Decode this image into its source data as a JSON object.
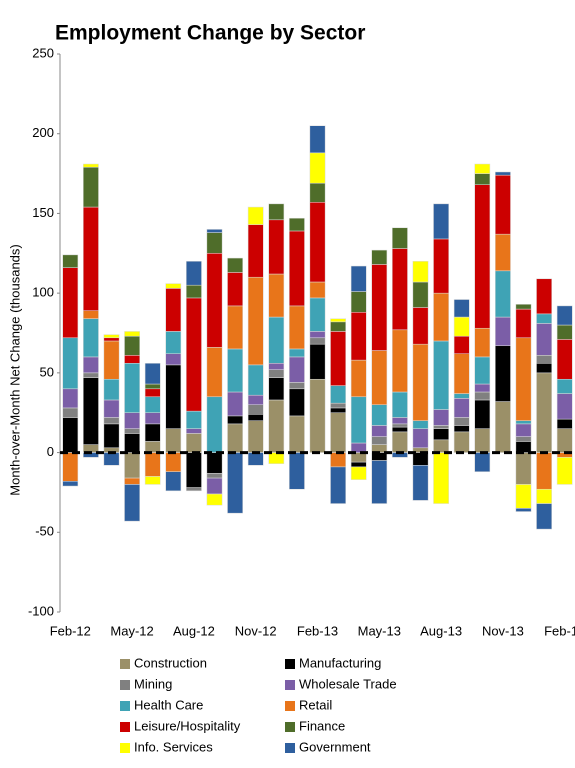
{
  "chart_data": {
    "type": "stacked_bar",
    "title": "Employment Change by Sector",
    "ylabel": "Month-over-Month Net Change (thousands)",
    "categories": [
      "Feb-12",
      null,
      null,
      "May-12",
      null,
      null,
      "Aug-12",
      null,
      null,
      "Nov-12",
      null,
      null,
      "Feb-13",
      null,
      null,
      "May-13",
      null,
      null,
      "Aug-13",
      null,
      null,
      "Nov-13",
      null,
      null,
      "Feb-14"
    ],
    "ylim": [
      -100,
      250
    ],
    "yticks": [
      250,
      200,
      150,
      100,
      50,
      0,
      -50,
      -100
    ],
    "series": [
      {
        "name": "Construction",
        "color": "#9b9068",
        "values": [
          0,
          5,
          3,
          -16,
          7,
          15,
          12,
          0,
          18,
          20,
          33,
          23,
          46,
          25,
          -6,
          5,
          13,
          3,
          8,
          13,
          15,
          32,
          -20,
          50,
          15
        ]
      },
      {
        "name": "Manufacturing",
        "color": "#000000",
        "values": [
          22,
          42,
          15,
          12,
          11,
          40,
          -22,
          -13,
          5,
          4,
          14,
          17,
          22,
          3,
          -3,
          -5,
          3,
          -8,
          7,
          4,
          18,
          35,
          7,
          6,
          6
        ]
      },
      {
        "name": "Mining",
        "color": "#808080",
        "values": [
          6,
          3,
          4,
          3,
          0,
          0,
          -2,
          -3,
          0,
          6,
          5,
          4,
          4,
          3,
          0,
          5,
          2,
          0,
          2,
          5,
          5,
          0,
          3,
          5,
          0
        ]
      },
      {
        "name": "Wholesale Trade",
        "color": "#7b5ea7",
        "values": [
          12,
          10,
          11,
          10,
          7,
          7,
          3,
          -10,
          15,
          6,
          4,
          16,
          4,
          0,
          6,
          7,
          4,
          12,
          10,
          12,
          5,
          18,
          8,
          20,
          16
        ]
      },
      {
        "name": "Health Care",
        "color": "#3fa3b5",
        "values": [
          32,
          24,
          13,
          31,
          10,
          14,
          11,
          35,
          27,
          19,
          29,
          5,
          21,
          11,
          29,
          13,
          16,
          5,
          43,
          3,
          17,
          29,
          2,
          6,
          9
        ]
      },
      {
        "name": "Retail",
        "color": "#e8751a",
        "values": [
          -18,
          5,
          24,
          -4,
          -15,
          -12,
          0,
          31,
          27,
          55,
          27,
          27,
          10,
          -9,
          23,
          34,
          39,
          48,
          30,
          25,
          18,
          23,
          52,
          -23,
          -3
        ]
      },
      {
        "name": "Leisure/Hospitality",
        "color": "#cc0000",
        "values": [
          44,
          65,
          2,
          5,
          5,
          27,
          71,
          59,
          21,
          33,
          34,
          47,
          50,
          34,
          30,
          54,
          51,
          23,
          34,
          11,
          90,
          37,
          18,
          22,
          25
        ]
      },
      {
        "name": "Finance",
        "color": "#4f6d2a",
        "values": [
          8,
          25,
          0,
          12,
          3,
          0,
          8,
          13,
          9,
          0,
          10,
          8,
          12,
          6,
          13,
          9,
          13,
          16,
          0,
          0,
          7,
          0,
          3,
          0,
          9
        ]
      },
      {
        "name": "Info. Services",
        "color": "#ffff00",
        "values": [
          0,
          2,
          2,
          3,
          -5,
          3,
          0,
          -7,
          0,
          11,
          -7,
          0,
          19,
          2,
          -8,
          0,
          0,
          13,
          -32,
          12,
          6,
          0,
          -15,
          -9,
          -17
        ]
      },
      {
        "name": "Government",
        "color": "#2e5f9e",
        "values": [
          -3,
          -3,
          -8,
          -23,
          13,
          -12,
          15,
          2,
          -38,
          -8,
          0,
          -23,
          17,
          -23,
          16,
          -27,
          -3,
          -22,
          22,
          11,
          -12,
          2,
          -2,
          -16,
          12
        ]
      }
    ]
  }
}
